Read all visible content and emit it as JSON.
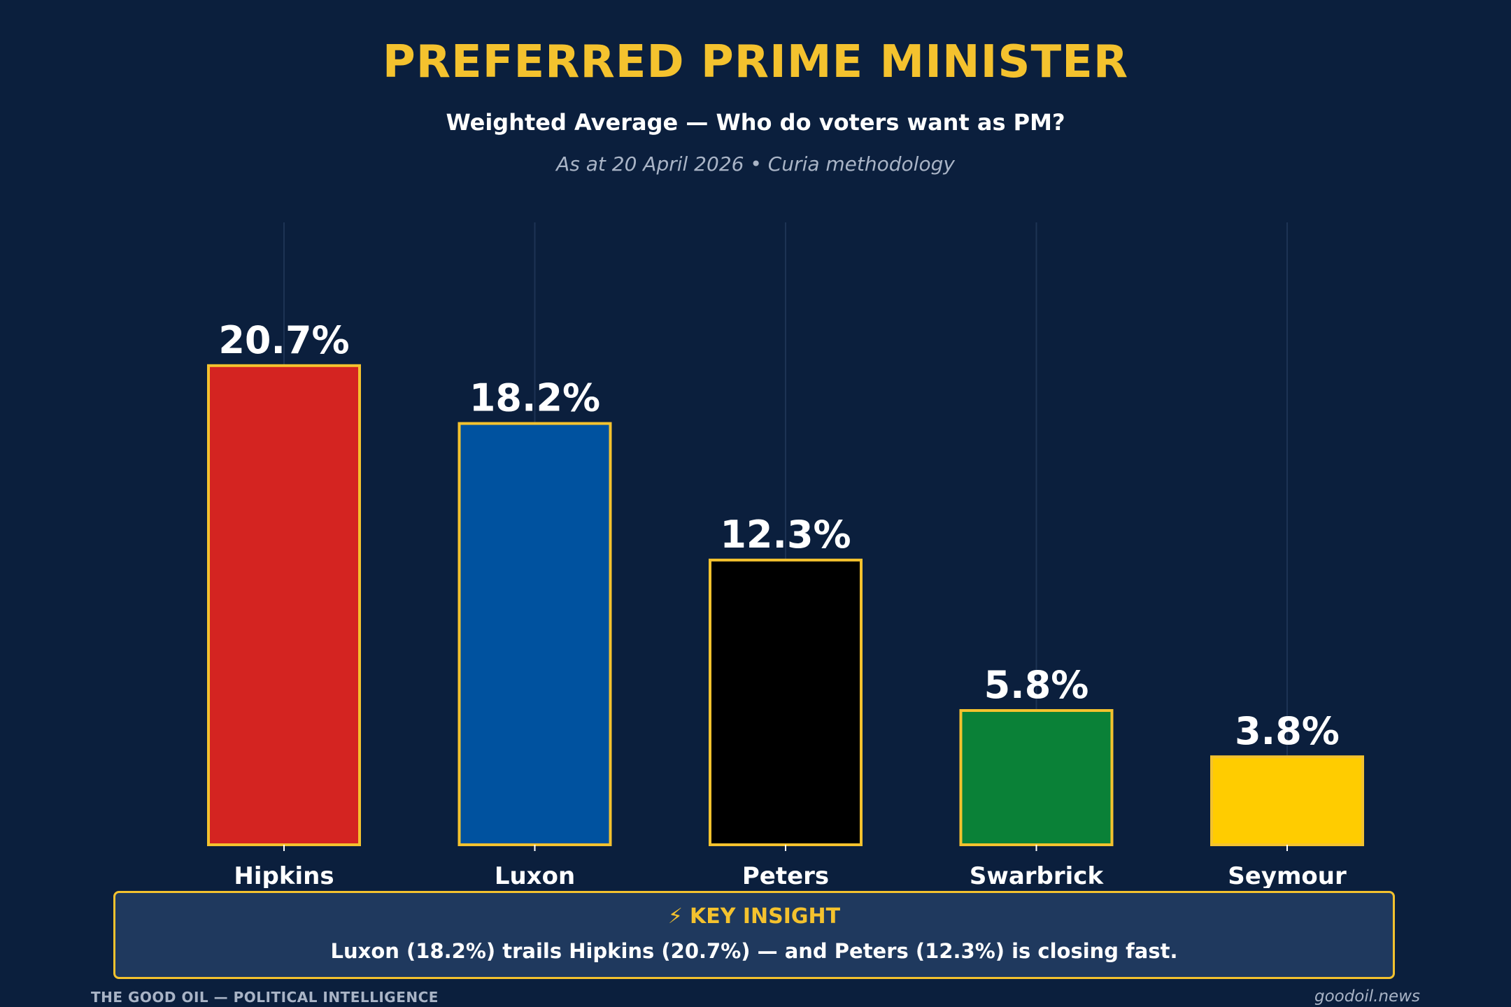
{
  "header": {
    "title": "PREFERRED PRIME MINISTER",
    "subtitle": "Weighted Average — Who do voters want as PM?",
    "meta": "As at 20 April 2026  •  Curia methodology"
  },
  "chart_data": {
    "type": "bar",
    "title": "PREFERRED PRIME MINISTER",
    "subtitle": "Weighted Average — Who do voters want as PM?",
    "xlabel": "",
    "ylabel": "",
    "ylim": [
      0,
      24
    ],
    "grid": "vertical",
    "categories": [
      "Hipkins",
      "Luxon",
      "Peters",
      "Swarbrick",
      "Seymour"
    ],
    "values": [
      20.7,
      18.2,
      12.3,
      5.8,
      3.8
    ],
    "data_labels": [
      "20.7%",
      "18.2%",
      "12.3%",
      "5.8%",
      "3.8%"
    ],
    "colors": [
      "#d42421",
      "#00529f",
      "#000000",
      "#0a8137",
      "#ffcc00"
    ],
    "outline_color": "#f4c22e"
  },
  "insight": {
    "icon": "lightning-icon",
    "icon_glyph": "⚡",
    "heading": "KEY INSIGHT",
    "text": "Luxon (18.2%) trails Hipkins (20.7%) — and Peters (12.3%) is closing fast."
  },
  "footer": {
    "left": "THE GOOD OIL — POLITICAL INTELLIGENCE",
    "right": "goodoil.news"
  }
}
